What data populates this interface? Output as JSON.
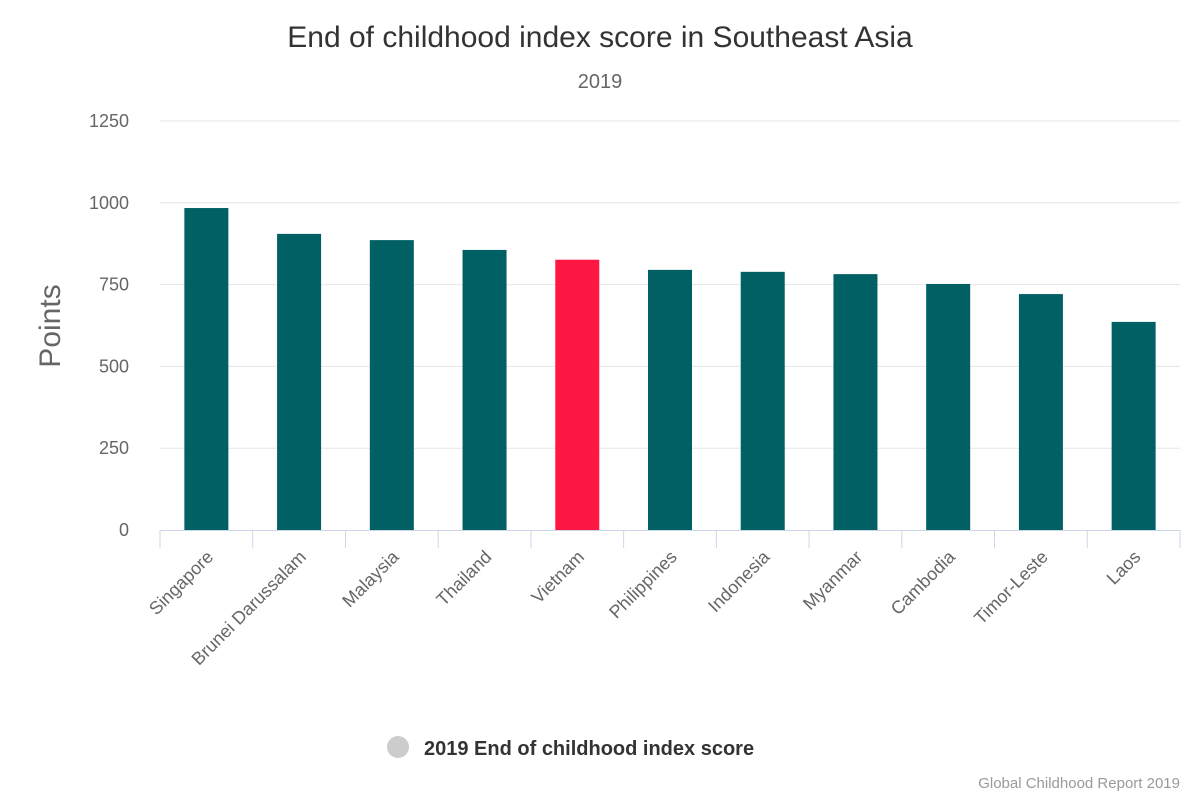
{
  "chart_data": {
    "type": "bar",
    "title": "End of childhood index score in Southeast Asia",
    "subtitle": "2019",
    "xlabel": "",
    "ylabel": "Points",
    "ylim": [
      0,
      1250
    ],
    "yticks": [
      0,
      250,
      500,
      750,
      1000,
      1250
    ],
    "grid": true,
    "categories": [
      "Singapore",
      "Brunei Darussalam",
      "Malaysia",
      "Thailand",
      "Vietnam",
      "Philippines",
      "Indonesia",
      "Myanmar",
      "Cambodia",
      "Timor-Leste",
      "Laos"
    ],
    "series": [
      {
        "name": "2019 End of childhood index score",
        "values": [
          984,
          905,
          886,
          856,
          826,
          795,
          789,
          782,
          752,
          721,
          636
        ]
      }
    ],
    "highlight": "Vietnam",
    "colors": {
      "bar": "#006064",
      "highlight": "#ff1744",
      "legend_marker": "#cccccc"
    },
    "legend_position": "bottom",
    "credit": "Global Childhood Report 2019"
  }
}
